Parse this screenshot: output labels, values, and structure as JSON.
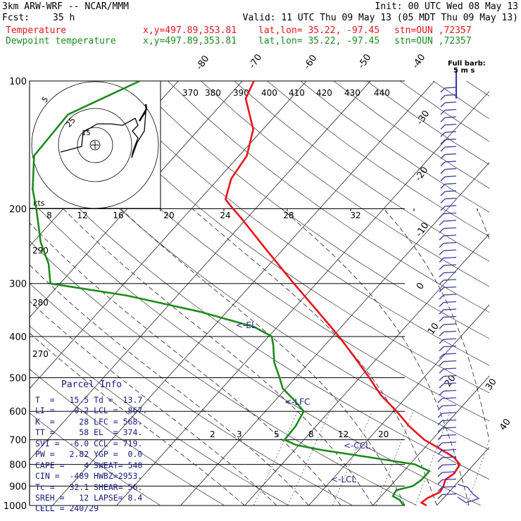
{
  "header": {
    "model": "3km ARW-WRF -- NCAR/MMM",
    "init": "Init: 00 UTC Wed 08 May 13",
    "fcst_label": "Fcst:",
    "fcst_value": "35 h",
    "valid": "Valid: 11 UTC Thu 09 May 13 (05 MDT Thu 09 May 13)",
    "temp_label": "Temperature",
    "dew_label": "Dewpoint temperature",
    "xy": "x,y=497.89,353.81",
    "latlon": "lat,lon= 35.22, -97.45",
    "stn": "stn=OUN ,72357"
  },
  "colors": {
    "temperature": "#e8161b",
    "dewpoint": "#1e8a1e",
    "el_lfc": "#24248c"
  },
  "chart_data": {
    "type": "line",
    "title": "",
    "ylabel": "",
    "pressure_levels": [
      100,
      200,
      300,
      400,
      500,
      600,
      700,
      800,
      900,
      1000
    ],
    "isotherm_labels": [
      "-80",
      "-70",
      "-60",
      "-50",
      "-40",
      "-30",
      "-20",
      "-10",
      "0",
      "10",
      "20",
      "30",
      "40"
    ],
    "theta_labels": [
      "370",
      "380",
      "390",
      "400",
      "410",
      "420",
      "430",
      "440"
    ],
    "theta_labels_left": [
      "290",
      "280",
      "270"
    ],
    "mixing_ratio_labels": [
      "2",
      "3",
      "5",
      "8",
      "12",
      "20"
    ],
    "hodograph_speed_labels": [
      "8",
      "12",
      "16",
      "20",
      "24",
      "28",
      "32"
    ],
    "hodograph_unit": "kts",
    "hodograph_ring_labels": [
      "5",
      "25",
      "15"
    ],
    "series": [
      {
        "name": "Temperature",
        "points": [
          [
            1000,
            18.4
          ],
          [
            985,
            17.2
          ],
          [
            960,
            17.5
          ],
          [
            930,
            18.6
          ],
          [
            900,
            18.3
          ],
          [
            870,
            17.7
          ],
          [
            840,
            18.2
          ],
          [
            800,
            17.8
          ],
          [
            770,
            15.9
          ],
          [
            730,
            12.0
          ],
          [
            700,
            8.8
          ],
          [
            650,
            4.5
          ],
          [
            600,
            0.5
          ],
          [
            550,
            -4.2
          ],
          [
            500,
            -8.5
          ],
          [
            450,
            -13.4
          ],
          [
            400,
            -19.0
          ],
          [
            350,
            -25.7
          ],
          [
            300,
            -33.5
          ],
          [
            250,
            -42.5
          ],
          [
            210,
            -51.0
          ],
          [
            200,
            -53.5
          ],
          [
            190,
            -56.0
          ],
          [
            170,
            -58.0
          ],
          [
            150,
            -58.8
          ],
          [
            130,
            -61.5
          ],
          [
            110,
            -67.0
          ],
          [
            100,
            -68.2
          ]
        ]
      },
      {
        "name": "Dewpoint temperature",
        "points": [
          [
            1000,
            14.8
          ],
          [
            970,
            13.4
          ],
          [
            950,
            11.8
          ],
          [
            920,
            11.5
          ],
          [
            900,
            13.5
          ],
          [
            870,
            14.0
          ],
          [
            830,
            14.0
          ],
          [
            800,
            10.8
          ],
          [
            770,
            2.8
          ],
          [
            740,
            -5.8
          ],
          [
            720,
            -10.5
          ],
          [
            700,
            -13.0
          ],
          [
            650,
            -13.2
          ],
          [
            600,
            -14.0
          ],
          [
            560,
            -17.5
          ],
          [
            530,
            -20.5
          ],
          [
            500,
            -22.5
          ],
          [
            460,
            -25.5
          ],
          [
            420,
            -28.0
          ],
          [
            400,
            -29.5
          ],
          [
            380,
            -33.5
          ],
          [
            350,
            -44.0
          ],
          [
            320,
            -58.0
          ],
          [
            300,
            -71.5
          ],
          [
            270,
            -74.5
          ],
          [
            240,
            -78.8
          ],
          [
            200,
            -84.2
          ],
          [
            180,
            -87.5
          ],
          [
            150,
            -92.0
          ],
          [
            120,
            -92.5
          ],
          [
            100,
            -86.0
          ]
        ]
      }
    ],
    "annotations": [
      "<-EL",
      "<-LFC",
      "<-CCL",
      "<-LCL"
    ],
    "full_barb_label": "Full barb:",
    "full_barb_value": "5 m s"
  },
  "parcel_info": {
    "title": "Parcel Info",
    "rows": [
      "T  =   15.5 Td =  13.7",
      "LI =   -0.2 LCL =  867.",
      "K  =     28 LFC = 568.",
      "TT =     58 EL  = 374.",
      "SVI =  -6.0 CCL = 719.",
      "PW =   2.82 YGP =  0.0",
      "CAPE =    4 SWEAT= 540",
      "CIN =  -489 HWBZ=2953.",
      "Tc =   32.1 SHEAR= 56.",
      "SREH =   12 LAPSE= 8.4",
      "CELL = 240/29"
    ]
  }
}
